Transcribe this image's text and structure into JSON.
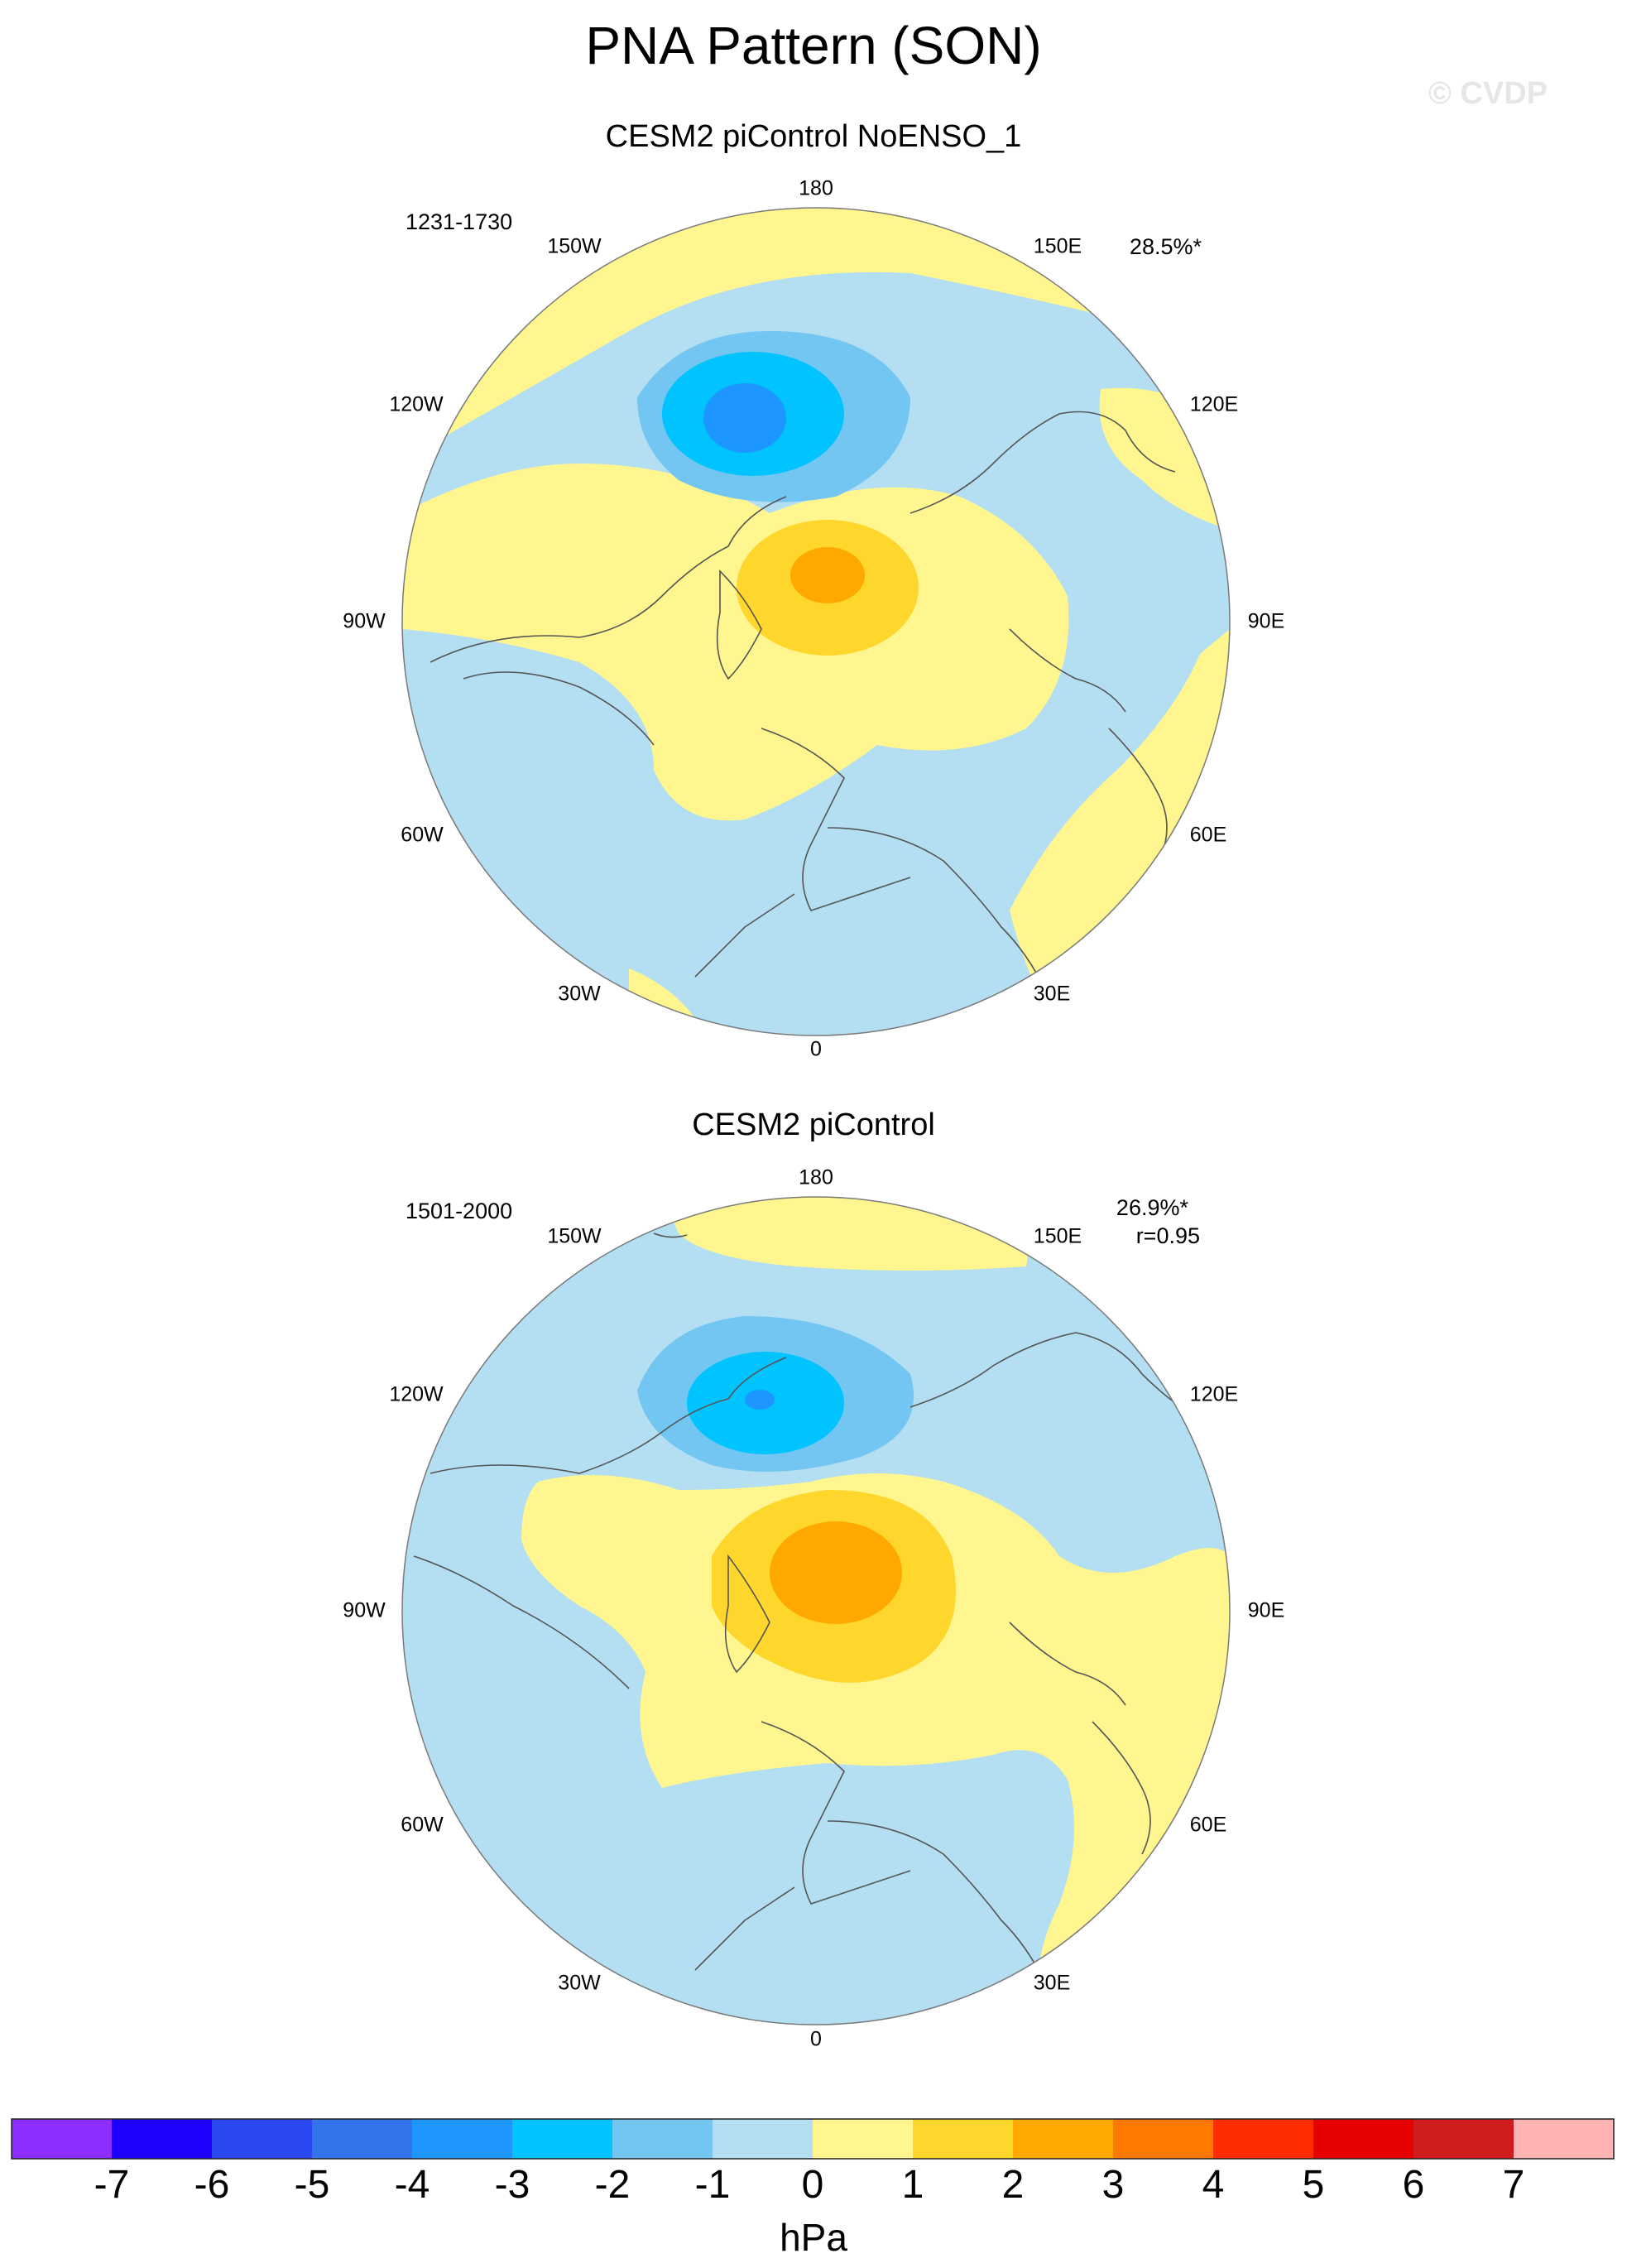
{
  "title": "PNA Pattern (SON)",
  "watermark": "© CVDP",
  "panels": [
    {
      "title": "CESM2 piControl NoENSO_1",
      "period": "1231-1730",
      "pct_variance": "28.5%*",
      "corr": "",
      "lon_labels": [
        "180",
        "150E",
        "120E",
        "90E",
        "60E",
        "30E",
        "0",
        "30W",
        "60W",
        "90W",
        "120W",
        "150W"
      ]
    },
    {
      "title": "CESM2 piControl",
      "period": "1501-2000",
      "pct_variance": "26.9%*",
      "corr": "r=0.95",
      "lon_labels": [
        "180",
        "150E",
        "120E",
        "90E",
        "60E",
        "30E",
        "0",
        "30W",
        "60W",
        "90W",
        "120W",
        "150W"
      ]
    }
  ],
  "colorbar": {
    "units": "hPa",
    "labels": [
      "-7",
      "-6",
      "-5",
      "-4",
      "-3",
      "-2",
      "-1",
      "0",
      "1",
      "2",
      "3",
      "4",
      "5",
      "6",
      "7"
    ],
    "colors": [
      "#8c2eff",
      "#1e00ff",
      "#2a47f0",
      "#3374ea",
      "#1e96ff",
      "#00c3ff",
      "#73c6f2",
      "#b4def2",
      "#fff690",
      "#ffd62c",
      "#ffa800",
      "#ff7800",
      "#ff2d00",
      "#e60000",
      "#cf1c1c",
      "#ffb3b3"
    ]
  }
}
